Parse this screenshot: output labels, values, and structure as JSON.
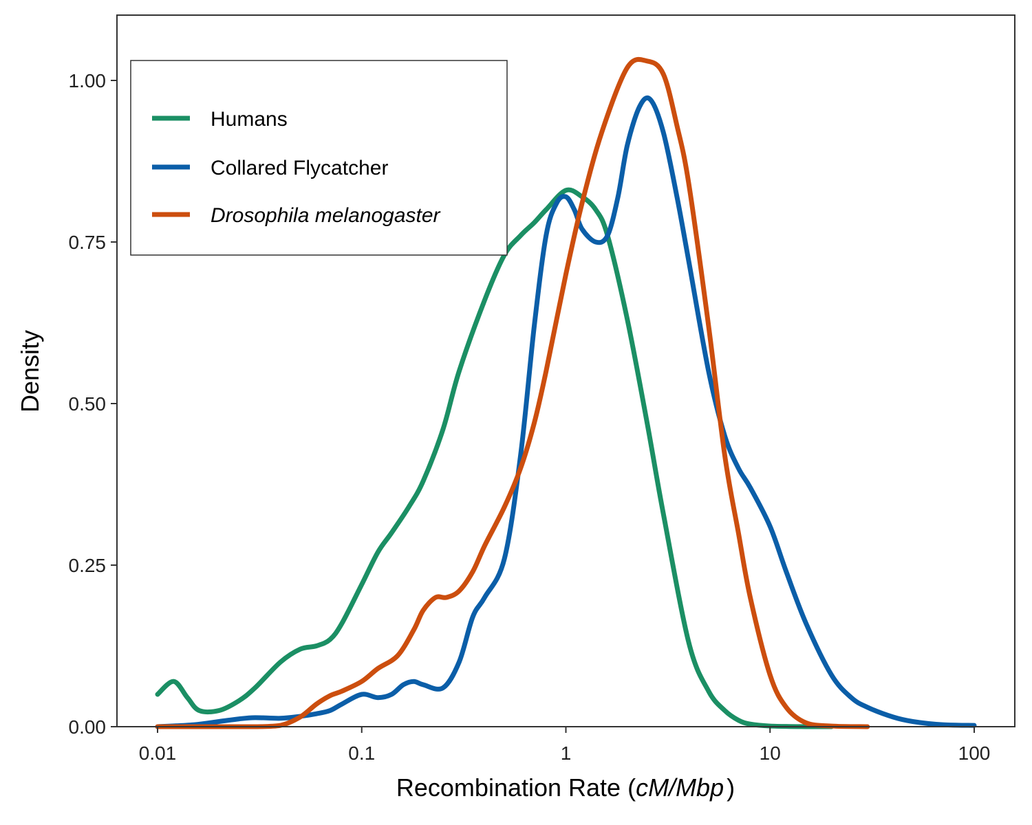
{
  "chart_data": {
    "type": "line",
    "xlabel_main": "Recombination Rate (",
    "xlabel_italic": "cM/Mbp",
    "xlabel_end": ")",
    "ylabel": "Density",
    "x_scale": "log10",
    "xlim": [
      0.01,
      100
    ],
    "ylim": [
      0,
      1.1
    ],
    "x_ticks": [
      {
        "value": 0.01,
        "label": "0.01"
      },
      {
        "value": 0.1,
        "label": "0.1"
      },
      {
        "value": 1,
        "label": "1"
      },
      {
        "value": 10,
        "label": "10"
      },
      {
        "value": 100,
        "label": "100"
      }
    ],
    "y_ticks": [
      {
        "value": 0,
        "label": "0.00"
      },
      {
        "value": 0.25,
        "label": "0.25"
      },
      {
        "value": 0.5,
        "label": "0.50"
      },
      {
        "value": 0.75,
        "label": "0.75"
      },
      {
        "value": 1.0,
        "label": "1.00"
      }
    ],
    "grid": false,
    "legend_position": "top-left",
    "series": [
      {
        "name": "Humans",
        "italic": false,
        "color": "#1b8f64",
        "x": [
          0.01,
          0.012,
          0.014,
          0.016,
          0.02,
          0.025,
          0.03,
          0.04,
          0.05,
          0.06,
          0.07,
          0.08,
          0.1,
          0.12,
          0.14,
          0.17,
          0.2,
          0.25,
          0.3,
          0.4,
          0.5,
          0.6,
          0.7,
          0.8,
          1.0,
          1.2,
          1.4,
          1.6,
          2.0,
          2.5,
          3.0,
          4.0,
          5.0,
          6.0,
          7.0,
          8.0,
          10.0,
          15.0,
          20.0
        ],
        "y": [
          0.05,
          0.07,
          0.045,
          0.025,
          0.025,
          0.04,
          0.06,
          0.1,
          0.12,
          0.125,
          0.135,
          0.16,
          0.22,
          0.27,
          0.3,
          0.34,
          0.38,
          0.46,
          0.55,
          0.66,
          0.73,
          0.76,
          0.78,
          0.8,
          0.83,
          0.82,
          0.8,
          0.76,
          0.63,
          0.47,
          0.33,
          0.13,
          0.055,
          0.025,
          0.01,
          0.004,
          0.001,
          0.0,
          0.0
        ]
      },
      {
        "name": "Collared Flycatcher",
        "italic": false,
        "color": "#0b5ea8",
        "x": [
          0.01,
          0.015,
          0.02,
          0.025,
          0.03,
          0.04,
          0.05,
          0.06,
          0.07,
          0.08,
          0.1,
          0.12,
          0.14,
          0.16,
          0.18,
          0.2,
          0.25,
          0.3,
          0.35,
          0.4,
          0.5,
          0.6,
          0.7,
          0.8,
          0.9,
          1.0,
          1.1,
          1.2,
          1.4,
          1.6,
          1.8,
          2.0,
          2.3,
          2.6,
          3.0,
          3.5,
          4.0,
          5.0,
          6.0,
          7.0,
          8.0,
          10.0,
          12.0,
          15.0,
          20.0,
          25.0,
          30.0,
          40.0,
          50.0,
          70.0,
          100.0
        ],
        "y": [
          0.0,
          0.003,
          0.008,
          0.012,
          0.014,
          0.013,
          0.016,
          0.02,
          0.025,
          0.035,
          0.05,
          0.045,
          0.05,
          0.065,
          0.07,
          0.065,
          0.06,
          0.1,
          0.17,
          0.2,
          0.26,
          0.42,
          0.62,
          0.76,
          0.81,
          0.82,
          0.8,
          0.77,
          0.75,
          0.76,
          0.82,
          0.9,
          0.96,
          0.97,
          0.92,
          0.82,
          0.72,
          0.55,
          0.45,
          0.4,
          0.37,
          0.31,
          0.24,
          0.16,
          0.08,
          0.045,
          0.03,
          0.015,
          0.008,
          0.003,
          0.002
        ]
      },
      {
        "name": "Drosophila melanogaster",
        "italic": true,
        "color": "#cc4e0e",
        "x": [
          0.01,
          0.02,
          0.03,
          0.04,
          0.05,
          0.06,
          0.07,
          0.08,
          0.1,
          0.12,
          0.15,
          0.18,
          0.2,
          0.23,
          0.26,
          0.3,
          0.35,
          0.4,
          0.5,
          0.6,
          0.7,
          0.8,
          1.0,
          1.2,
          1.5,
          2.0,
          2.5,
          3.0,
          3.5,
          4.0,
          5.0,
          6.0,
          7.0,
          8.0,
          10.0,
          12.0,
          15.0,
          20.0,
          30.0
        ],
        "y": [
          0.0,
          0.0,
          0.0,
          0.002,
          0.015,
          0.035,
          0.048,
          0.055,
          0.07,
          0.09,
          0.11,
          0.15,
          0.18,
          0.2,
          0.2,
          0.21,
          0.24,
          0.28,
          0.34,
          0.4,
          0.47,
          0.55,
          0.7,
          0.81,
          0.92,
          1.02,
          1.03,
          1.01,
          0.93,
          0.84,
          0.62,
          0.42,
          0.3,
          0.2,
          0.08,
          0.03,
          0.006,
          0.001,
          0.0
        ]
      }
    ]
  }
}
